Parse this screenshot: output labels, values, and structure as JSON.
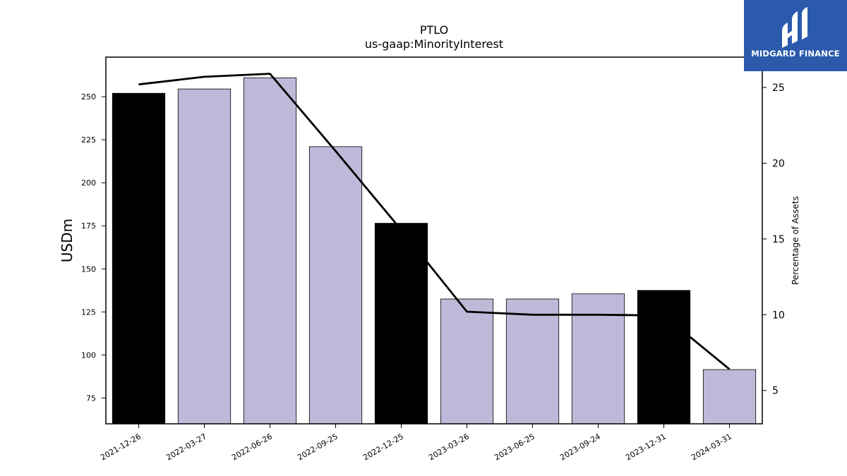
{
  "chart_data": {
    "type": "bar",
    "title": "PTLO",
    "subtitle": "us-gaap:MinorityInterest",
    "ylabel": "USDm",
    "y2label": "Percentage of Assets",
    "ylim": [
      60,
      273
    ],
    "y2lim": [
      2.8,
      27.0
    ],
    "yticks": [
      75,
      100,
      125,
      150,
      175,
      200,
      225,
      250
    ],
    "y2ticks": [
      5,
      10,
      15,
      20,
      25
    ],
    "categories": [
      "2021-12-26",
      "2022-03-27",
      "2022-06-26",
      "2022-09-25",
      "2022-12-25",
      "2023-03-26",
      "2023-06-25",
      "2023-09-24",
      "2023-12-31",
      "2024-03-31"
    ],
    "series": [
      {
        "type": "bar",
        "values": [
          252,
          254.5,
          261,
          221,
          176.5,
          132.5,
          132.5,
          135.5,
          137.5,
          91.5
        ]
      },
      {
        "type": "line",
        "axis": "right",
        "values": [
          25.2,
          25.7,
          25.9,
          20.8,
          15.6,
          10.2,
          10.0,
          10.0,
          9.95,
          6.4
        ]
      }
    ],
    "bar_highlight": [
      true,
      false,
      false,
      false,
      true,
      false,
      false,
      false,
      true,
      false
    ],
    "colors": {
      "bar_highlight": "#000000",
      "bar_default": "#bdbad9",
      "line": "#000000",
      "logo_bg": "#2b5aad"
    },
    "grid": false,
    "legend": "none"
  },
  "logo": {
    "text": "MIDGARD FINANCE"
  }
}
